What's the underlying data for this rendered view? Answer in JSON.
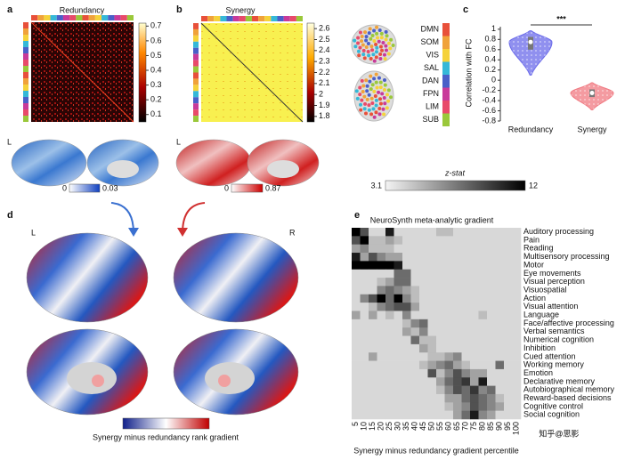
{
  "letters": [
    "a",
    "b",
    "c",
    "d",
    "e"
  ],
  "networks": [
    {
      "name": "DMN",
      "color": "#e8503a"
    },
    {
      "name": "SOM",
      "color": "#f0a23a"
    },
    {
      "name": "VIS",
      "color": "#f5d23a"
    },
    {
      "name": "SAL",
      "color": "#35b8d8"
    },
    {
      "name": "DAN",
      "color": "#4a5fc8"
    },
    {
      "name": "FPN",
      "color": "#c83a9a"
    },
    {
      "name": "LIM",
      "color": "#e84a6a"
    },
    {
      "name": "SUB",
      "color": "#9ac83a"
    }
  ],
  "brain_maps": [
    {
      "hemi": "L",
      "ticks": [
        0,
        0.03
      ]
    },
    {
      "hemi": "L",
      "ticks": [
        0,
        0.87
      ]
    }
  ],
  "gradient_map": {
    "hemis": [
      "L",
      "R"
    ],
    "label": "Synergy minus redundancy rank gradient"
  },
  "watermark": "知乎@思影",
  "chart_data": [
    {
      "type": "matrix",
      "title": "Redundancy",
      "ylim": [
        0.05,
        0.72
      ],
      "yticks": [
        0.1,
        0.2,
        0.3,
        0.4,
        0.5,
        0.6,
        0.7
      ]
    },
    {
      "type": "matrix",
      "title": "Synergy",
      "ylim": [
        1.75,
        2.65
      ],
      "yticks": [
        1.8,
        1.9,
        2,
        2.1,
        2.2,
        2.3,
        2.4,
        2.5,
        2.6
      ]
    },
    {
      "type": "violin",
      "ylabel": "Correlation with FC",
      "categories": [
        "Redundancy",
        "Synergy"
      ],
      "colors": [
        "#6b6bea",
        "#f07a82"
      ],
      "stats": [
        {
          "min": 0.1,
          "q1": 0.6,
          "median": 0.75,
          "q3": 0.85,
          "max": 0.97
        },
        {
          "min": -0.58,
          "q1": -0.33,
          "median": -0.25,
          "q3": -0.18,
          "max": -0.05
        }
      ],
      "annotation": "***",
      "ylim": [
        -0.8,
        1.05
      ],
      "yticks": [
        -0.8,
        -0.6,
        -0.4,
        -0.2,
        0,
        0.2,
        0.4,
        0.6,
        0.8,
        1
      ]
    },
    {
      "type": "heatmap",
      "title": "NeuroSynth meta-analytic gradient",
      "xlabel": "Synergy minus redundancy gradient percentile",
      "zlabel": "z-stat",
      "zlim": [
        3.1,
        12
      ],
      "zticks": [
        3.1,
        12
      ],
      "x": [
        5,
        10,
        15,
        20,
        25,
        30,
        35,
        40,
        45,
        50,
        55,
        60,
        65,
        70,
        75,
        80,
        85,
        90,
        95,
        100
      ],
      "categories": [
        "Auditory processing",
        "Pain",
        "Reading",
        "Multisensory processing",
        "Motor",
        "Eye movements",
        "Visual perception",
        "Visuospatial",
        "Action",
        "Visual attention",
        "Language",
        "Face/affective processing",
        "Verbal semantics",
        "Numerical cognition",
        "Inhibition",
        "Cued attention",
        "Working memory",
        "Emotion",
        "Declarative memory",
        "Autobiographical memory",
        "Reward-based decisions",
        "Cognitive control",
        "Social cognition"
      ],
      "values": [
        [
          12,
          9,
          4,
          4,
          11,
          4,
          4,
          4,
          4,
          4,
          5,
          5,
          4,
          4,
          4,
          4,
          4,
          4,
          4,
          4
        ],
        [
          9,
          12,
          5,
          5,
          6,
          5,
          4,
          4,
          4,
          4,
          4,
          4,
          4,
          4,
          4,
          4,
          4,
          4,
          4,
          4
        ],
        [
          6,
          7,
          5,
          5,
          5,
          4,
          4,
          4,
          4,
          4,
          4,
          4,
          4,
          4,
          4,
          4,
          4,
          4,
          4,
          4
        ],
        [
          11,
          6,
          9,
          7,
          6,
          6,
          4,
          4,
          4,
          4,
          4,
          4,
          4,
          4,
          4,
          4,
          4,
          4,
          4,
          4
        ],
        [
          12,
          12,
          12,
          12,
          12,
          11,
          4,
          4,
          4,
          4,
          4,
          4,
          4,
          4,
          4,
          4,
          4,
          4,
          4,
          4
        ],
        [
          4,
          4,
          4,
          4,
          4,
          8,
          8,
          4,
          4,
          4,
          4,
          4,
          4,
          4,
          4,
          4,
          4,
          4,
          4,
          4
        ],
        [
          4,
          4,
          4,
          5,
          6,
          8,
          8,
          4,
          4,
          4,
          4,
          4,
          4,
          4,
          4,
          4,
          4,
          4,
          4,
          4
        ],
        [
          4,
          4,
          4,
          7,
          8,
          7,
          6,
          5,
          4,
          4,
          4,
          4,
          4,
          4,
          4,
          4,
          4,
          4,
          4,
          4
        ],
        [
          4,
          7,
          9,
          12,
          8,
          12,
          7,
          5,
          4,
          4,
          4,
          4,
          4,
          4,
          4,
          4,
          4,
          4,
          4,
          4
        ],
        [
          4,
          4,
          5,
          7,
          8,
          9,
          9,
          6,
          4,
          4,
          4,
          4,
          4,
          4,
          4,
          4,
          4,
          4,
          4,
          4
        ],
        [
          6,
          4,
          6,
          4,
          5,
          4,
          7,
          4,
          4,
          4,
          4,
          4,
          4,
          4,
          4,
          5,
          4,
          4,
          4,
          4
        ],
        [
          4,
          4,
          4,
          4,
          4,
          4,
          5,
          7,
          8,
          4,
          4,
          4,
          4,
          4,
          4,
          4,
          4,
          4,
          4,
          4
        ],
        [
          4,
          4,
          4,
          4,
          4,
          4,
          6,
          5,
          7,
          4,
          4,
          4,
          4,
          4,
          4,
          4,
          4,
          4,
          4,
          4
        ],
        [
          4,
          4,
          4,
          4,
          4,
          4,
          4,
          8,
          5,
          5,
          4,
          4,
          4,
          4,
          4,
          4,
          4,
          4,
          4,
          4
        ],
        [
          4,
          4,
          4,
          4,
          4,
          4,
          4,
          4,
          6,
          5,
          4,
          4,
          4,
          4,
          4,
          4,
          4,
          4,
          4,
          4
        ],
        [
          4,
          4,
          6,
          4,
          4,
          4,
          4,
          4,
          4,
          5,
          5,
          6,
          7,
          4,
          4,
          4,
          4,
          4,
          4,
          4
        ],
        [
          4,
          4,
          4,
          4,
          4,
          4,
          4,
          4,
          5,
          6,
          7,
          8,
          6,
          5,
          4,
          4,
          4,
          8,
          4,
          4
        ],
        [
          4,
          4,
          4,
          4,
          4,
          4,
          4,
          4,
          4,
          9,
          5,
          7,
          9,
          7,
          6,
          6,
          4,
          4,
          4,
          4
        ],
        [
          4,
          4,
          4,
          4,
          4,
          4,
          4,
          4,
          4,
          4,
          6,
          8,
          9,
          10,
          6,
          11,
          4,
          4,
          4,
          4
        ],
        [
          4,
          4,
          4,
          4,
          4,
          4,
          4,
          4,
          4,
          4,
          5,
          7,
          9,
          8,
          10,
          7,
          8,
          4,
          4,
          4
        ],
        [
          4,
          4,
          4,
          4,
          4,
          4,
          4,
          4,
          4,
          4,
          4,
          6,
          6,
          8,
          9,
          8,
          7,
          5,
          4,
          4
        ],
        [
          4,
          4,
          4,
          4,
          4,
          4,
          4,
          4,
          4,
          4,
          4,
          5,
          6,
          7,
          9,
          8,
          7,
          6,
          4,
          4
        ],
        [
          4,
          4,
          4,
          4,
          4,
          4,
          4,
          4,
          4,
          4,
          4,
          4,
          6,
          8,
          11,
          7,
          6,
          4,
          4,
          4
        ]
      ]
    }
  ]
}
